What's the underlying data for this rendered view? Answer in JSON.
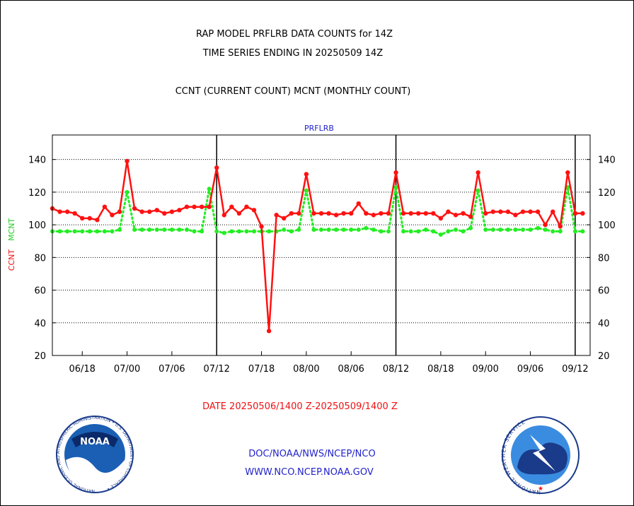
{
  "header": {
    "title_line1": "RAP MODEL PRFLRB DATA COUNTS for 14Z",
    "title_line2": "TIME SERIES ENDING IN 20250509 14Z",
    "subtitle": "CCNT (CURRENT COUNT) MCNT (MONTHLY COUNT)"
  },
  "footer": {
    "date_range": "DATE 20250506/1400 Z-20250509/1400 Z",
    "org_line": "DOC/NOAA/NWS/NCEP/NCO",
    "url_line": "WWW.NCO.NCEP.NOAA.GOV",
    "noaa_logo_text": "NOAA",
    "noaa_ring_text": "NATIONAL OCEANIC AND ATMOSPHERIC ADMINISTRATION • U.S. DEPARTMENT OF COMMERCE •",
    "nws_ring_text": "NATIONAL WEATHER SERVICE"
  },
  "colors": {
    "ccnt": "#ff1111",
    "mcnt": "#22ee22",
    "plot_label": "#2222cc",
    "footer_link": "#2222cc",
    "date_text": "#ee1111"
  },
  "chart_data": {
    "type": "line",
    "title": "PRFLRB",
    "ylabel_left": [
      "CCNT",
      "MCNT"
    ],
    "ylim": [
      20,
      155
    ],
    "yticks": [
      20,
      40,
      60,
      80,
      100,
      120,
      140
    ],
    "xtick_labels": [
      "06/18",
      "07/00",
      "07/06",
      "07/12",
      "07/18",
      "08/00",
      "08/06",
      "08/12",
      "08/18",
      "09/00",
      "09/06",
      "09/12"
    ],
    "xtick_positions": [
      4,
      10,
      16,
      22,
      28,
      34,
      40,
      46,
      52,
      58,
      64,
      70
    ],
    "day_boundaries": [
      22,
      46,
      70
    ],
    "x_start": 0,
    "x_end": 72,
    "horizontal_grid": true,
    "series": [
      {
        "name": "CCNT",
        "values": [
          110,
          108,
          108,
          107,
          104,
          104,
          103,
          111,
          106,
          108,
          139,
          110,
          108,
          108,
          109,
          107,
          108,
          109,
          111,
          111,
          111,
          111,
          135,
          106,
          111,
          107,
          111,
          109,
          99,
          35,
          106,
          104,
          107,
          107,
          131,
          107,
          107,
          107,
          106,
          107,
          107,
          113,
          107,
          106,
          107,
          107,
          132,
          107,
          107,
          107,
          107,
          107,
          104,
          108,
          106,
          107,
          105,
          132,
          107,
          108,
          108,
          108,
          106,
          108,
          108,
          108,
          100,
          108,
          99,
          132,
          107,
          107
        ]
      },
      {
        "name": "MCNT",
        "values": [
          96,
          96,
          96,
          96,
          96,
          96,
          96,
          96,
          96,
          97,
          120,
          97,
          97,
          97,
          97,
          97,
          97,
          97,
          97,
          96,
          96,
          122,
          96,
          95,
          96,
          96,
          96,
          96,
          96,
          96,
          96,
          97,
          96,
          97,
          121,
          97,
          97,
          97,
          97,
          97,
          97,
          97,
          98,
          97,
          96,
          96,
          123,
          96,
          96,
          96,
          97,
          96,
          94,
          96,
          97,
          96,
          98,
          121,
          97,
          97,
          97,
          97,
          97,
          97,
          97,
          98,
          97,
          96,
          96,
          123,
          96,
          96
        ]
      }
    ]
  }
}
